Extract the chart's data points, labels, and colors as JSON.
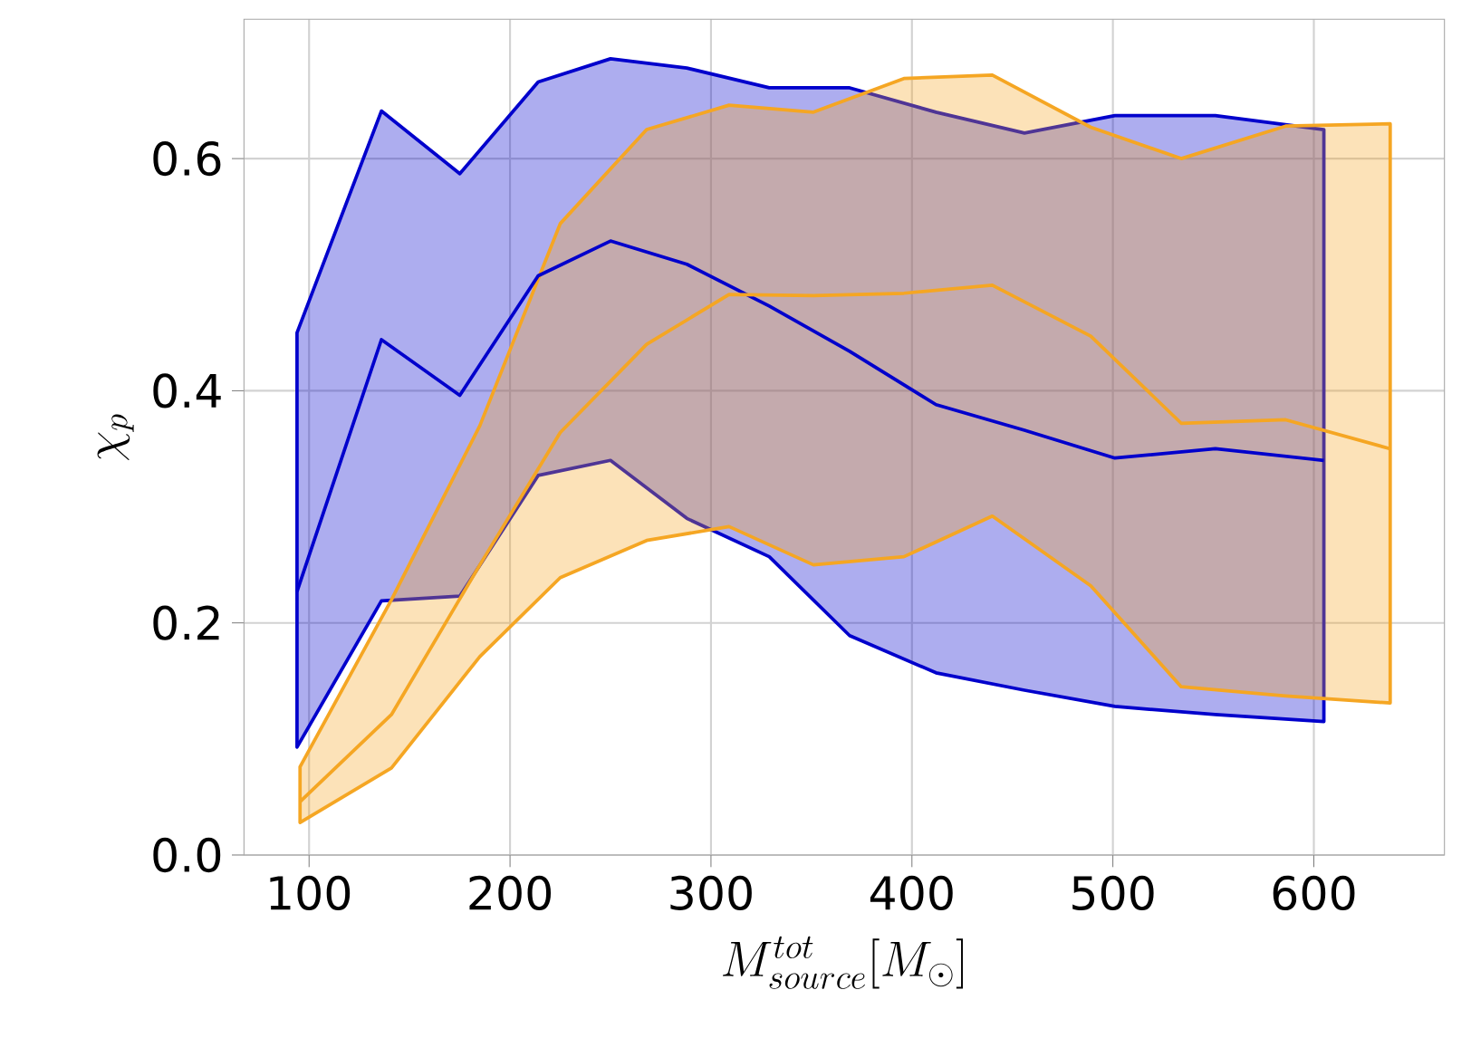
{
  "chart_data": {
    "type": "line",
    "xlabel": "M^{tot}_{source}[M_\\odot]",
    "ylabel": "\\chi_p",
    "xlim": [
      67.6,
      665
    ],
    "xticks": [
      100,
      200,
      300,
      400,
      500,
      600
    ],
    "ylim": [
      0,
      0.72
    ],
    "yticks": [
      {
        "value": 0,
        "label": "0.0"
      },
      {
        "value": 0.2,
        "label": "0.2"
      },
      {
        "value": 0.4,
        "label": "0.4"
      },
      {
        "value": 0.6,
        "label": "0.6"
      }
    ],
    "grid": true,
    "marker": "none",
    "line_style": "solid",
    "series": [
      {
        "color": "#0000cc",
        "x": [
          94,
          136,
          175,
          214,
          250,
          288,
          329,
          369,
          412,
          456,
          501,
          551,
          605
        ],
        "values": [
          0.227,
          0.444,
          0.396,
          0.499,
          0.529,
          0.509,
          0.473,
          0.434,
          0.388,
          0.366,
          0.342,
          0.35,
          0.34
        ],
        "lower": [
          0.093,
          0.219,
          0.223,
          0.327,
          0.34,
          0.29,
          0.257,
          0.189,
          0.157,
          0.142,
          0.128,
          0.121,
          0.115
        ],
        "upper": [
          0.45,
          0.641,
          0.587,
          0.666,
          0.686,
          0.678,
          0.661,
          0.661,
          0.64,
          0.622,
          0.637,
          0.637,
          0.625
        ]
      },
      {
        "color": "#f5a623",
        "x": [
          95.5,
          141,
          185,
          225,
          268,
          309,
          351,
          396,
          440,
          489,
          534,
          586,
          638
        ],
        "values": [
          0.046,
          0.121,
          0.25,
          0.364,
          0.44,
          0.483,
          0.482,
          0.484,
          0.491,
          0.447,
          0.372,
          0.375,
          0.35
        ],
        "lower": [
          0.028,
          0.075,
          0.171,
          0.239,
          0.271,
          0.283,
          0.25,
          0.257,
          0.292,
          0.232,
          0.145,
          0.137,
          0.131
        ],
        "upper": [
          0.076,
          0.22,
          0.37,
          0.544,
          0.625,
          0.646,
          0.64,
          0.669,
          0.672,
          0.627,
          0.6,
          0.628,
          0.63
        ]
      }
    ]
  }
}
